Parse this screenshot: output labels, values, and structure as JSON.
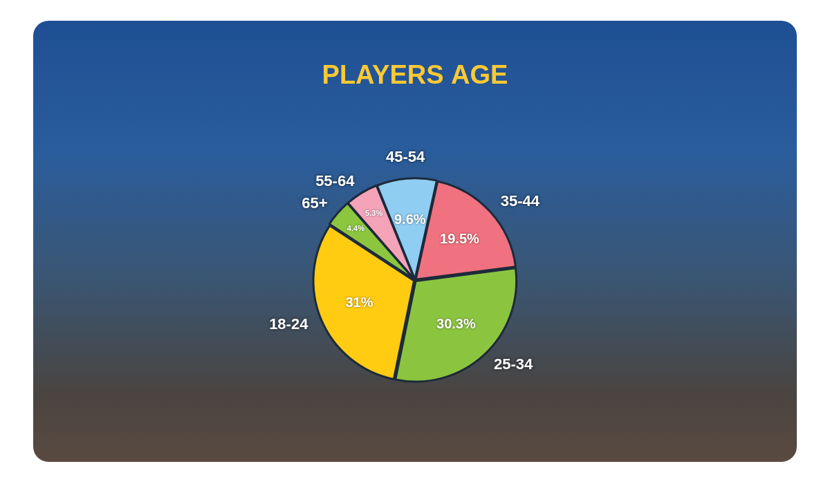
{
  "chart_data": {
    "type": "pie",
    "title": "PLAYERS AGE",
    "categories": [
      "45-54",
      "35-44",
      "25-34",
      "18-24",
      "65+",
      "55-64"
    ],
    "values": [
      9.6,
      19.5,
      30.3,
      31,
      4.4,
      5.3
    ],
    "value_labels": [
      "9.6%",
      "19.5%",
      "30.3%",
      "31%",
      "4.4%",
      "5.3%"
    ],
    "colors": [
      "#8fcdf2",
      "#f0717f",
      "#8bc53f",
      "#ffcc12",
      "#8cc63f",
      "#f5a3b8"
    ],
    "data_labels": true
  }
}
